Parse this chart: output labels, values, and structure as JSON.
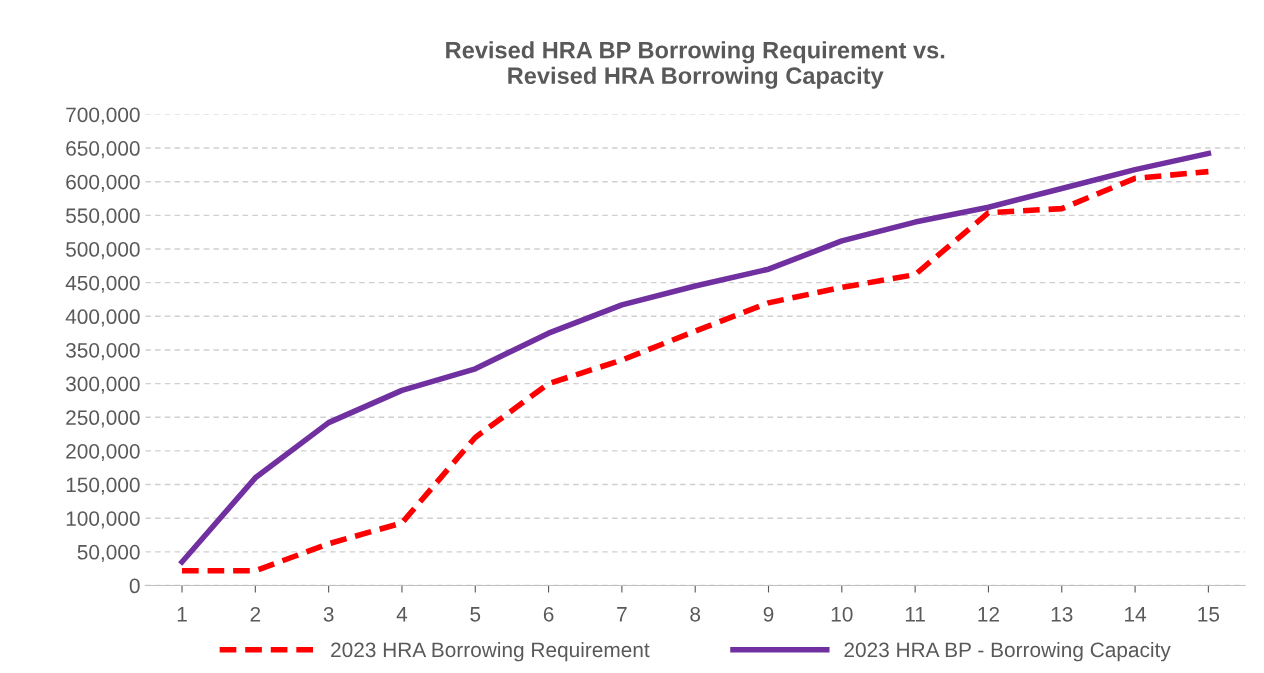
{
  "chart_data": {
    "type": "line",
    "title": "Revised HRA BP Borrowing Requirement vs.\nRevised HRA Borrowing Capacity",
    "categories": [
      "1",
      "2",
      "3",
      "4",
      "5",
      "6",
      "7",
      "8",
      "9",
      "10",
      "11",
      "12",
      "13",
      "14",
      "15"
    ],
    "series": [
      {
        "name": "2023 HRA Borrowing Requirement",
        "color": "#ff0000",
        "line_style": "dashed",
        "values": [
          22000,
          22000,
          62000,
          93000,
          220000,
          300000,
          335000,
          378000,
          420000,
          443000,
          462000,
          554000,
          560000,
          605000,
          615000
        ]
      },
      {
        "name": "2023 HRA BP - Borrowing Capacity",
        "color": "#7030a0",
        "line_style": "solid",
        "values": [
          35000,
          160000,
          242000,
          290000,
          322000,
          375000,
          417000,
          445000,
          470000,
          512000,
          540000,
          562000,
          590000,
          618000,
          642000
        ]
      }
    ],
    "ylim": [
      0,
      700000
    ],
    "yticks": [
      {
        "value": 0,
        "label": "0"
      },
      {
        "value": 50000,
        "label": "50,000"
      },
      {
        "value": 100000,
        "label": "100,000"
      },
      {
        "value": 150000,
        "label": "150,000"
      },
      {
        "value": 200000,
        "label": "200,000"
      },
      {
        "value": 250000,
        "label": "250,000"
      },
      {
        "value": 300000,
        "label": "300,000"
      },
      {
        "value": 350000,
        "label": "350,000"
      },
      {
        "value": 400000,
        "label": "400,000"
      },
      {
        "value": 450000,
        "label": "450,000"
      },
      {
        "value": 500000,
        "label": "500,000"
      },
      {
        "value": 550000,
        "label": "550,000"
      },
      {
        "value": 600000,
        "label": "600,000"
      },
      {
        "value": 650000,
        "label": "650,000"
      },
      {
        "value": 700000,
        "label": "700,000"
      }
    ],
    "grid": "y",
    "legend": "bottom",
    "marker": "none"
  }
}
